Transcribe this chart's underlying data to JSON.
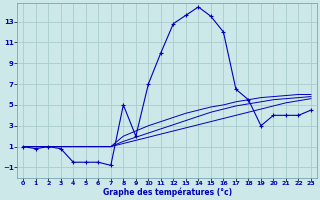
{
  "xlabel": "Graphe des températures (°c)",
  "bg_color": "#cce8e8",
  "grid_color": "#aacccc",
  "line_color": "#0000bb",
  "hours": [
    0,
    1,
    2,
    3,
    4,
    5,
    6,
    7,
    8,
    9,
    10,
    11,
    12,
    13,
    14,
    15,
    16,
    17,
    18,
    19,
    20,
    21,
    22,
    23
  ],
  "temps": [
    1,
    0.8,
    1,
    0.8,
    -0.5,
    -0.5,
    -0.5,
    -0.8,
    5,
    2,
    7,
    10,
    12.8,
    13.6,
    14.4,
    13.5,
    12,
    6.5,
    5.5,
    3,
    4,
    4,
    4,
    4.5
  ],
  "line1": [
    1,
    1,
    1,
    1,
    1,
    1,
    1,
    1,
    1.3,
    1.6,
    1.9,
    2.2,
    2.5,
    2.8,
    3.1,
    3.4,
    3.7,
    4.0,
    4.3,
    4.6,
    4.9,
    5.2,
    5.4,
    5.6
  ],
  "line2": [
    1,
    1,
    1,
    1,
    1,
    1,
    1,
    1,
    1.5,
    1.9,
    2.3,
    2.7,
    3.1,
    3.5,
    3.9,
    4.3,
    4.6,
    4.9,
    5.1,
    5.3,
    5.5,
    5.6,
    5.7,
    5.8
  ],
  "line3": [
    1,
    1,
    1,
    1,
    1,
    1,
    1,
    1,
    2.0,
    2.5,
    3.0,
    3.4,
    3.8,
    4.2,
    4.5,
    4.8,
    5.0,
    5.3,
    5.5,
    5.7,
    5.8,
    5.9,
    6.0,
    6.0
  ],
  "xlim": [
    -0.5,
    23.5
  ],
  "ylim": [
    -2,
    14.8
  ],
  "yticks": [
    -1,
    1,
    3,
    5,
    7,
    9,
    11,
    13
  ],
  "xticks": [
    0,
    1,
    2,
    3,
    4,
    5,
    6,
    7,
    8,
    9,
    10,
    11,
    12,
    13,
    14,
    15,
    16,
    17,
    18,
    19,
    20,
    21,
    22,
    23
  ]
}
